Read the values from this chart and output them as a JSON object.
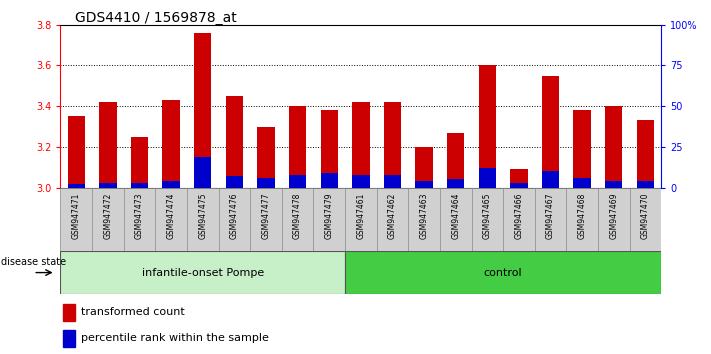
{
  "title": "GDS4410 / 1569878_at",
  "samples": [
    "GSM947471",
    "GSM947472",
    "GSM947473",
    "GSM947474",
    "GSM947475",
    "GSM947476",
    "GSM947477",
    "GSM947478",
    "GSM947479",
    "GSM947461",
    "GSM947462",
    "GSM947463",
    "GSM947464",
    "GSM947465",
    "GSM947466",
    "GSM947467",
    "GSM947468",
    "GSM947469",
    "GSM947470"
  ],
  "transformed_count": [
    3.35,
    3.42,
    3.25,
    3.43,
    3.76,
    3.45,
    3.3,
    3.4,
    3.38,
    3.42,
    3.42,
    3.2,
    3.27,
    3.6,
    3.09,
    3.55,
    3.38,
    3.4,
    3.33
  ],
  "percentile_rank": [
    2,
    3,
    3,
    4,
    19,
    7,
    6,
    8,
    9,
    8,
    8,
    4,
    5,
    12,
    3,
    10,
    6,
    4,
    4
  ],
  "group1_count": 9,
  "group2_count": 10,
  "group1_label": "infantile-onset Pompe",
  "group2_label": "control",
  "disease_state_label": "disease state",
  "legend_red": "transformed count",
  "legend_blue": "percentile rank within the sample",
  "ymin": 3.0,
  "ymax": 3.8,
  "yticks": [
    3.0,
    3.2,
    3.4,
    3.6,
    3.8
  ],
  "right_yticks": [
    0,
    25,
    50,
    75,
    100
  ],
  "right_ylabels": [
    "0",
    "25",
    "50",
    "75",
    "100%"
  ],
  "bar_color": "#cc0000",
  "percentile_color": "#0000cc",
  "group1_bg": "#c8f0c8",
  "group2_bg": "#44cc44",
  "sample_bg": "#d0d0d0",
  "title_fontsize": 10,
  "tick_fontsize": 7,
  "label_fontsize": 8,
  "bar_width": 0.55
}
